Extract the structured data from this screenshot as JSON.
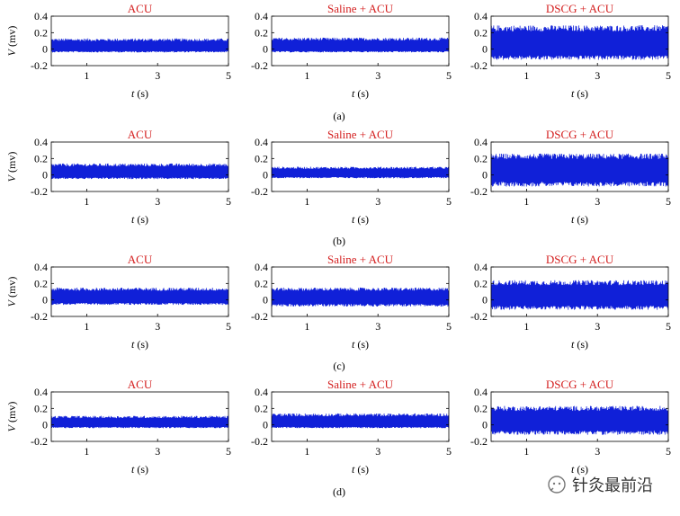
{
  "figure": {
    "row_captions": [
      "(a)",
      "(b)",
      "(c)",
      "(d)"
    ],
    "watermark": "针灸最前沿"
  },
  "colors": {
    "title": "#d42020",
    "signal": "#1020d8",
    "axis": "#000000"
  },
  "chart_data": [
    {
      "type": "line",
      "panel": "a-1",
      "title": "ACU",
      "xlabel": "t (s)",
      "ylabel": "V (mv)",
      "xlim": [
        0,
        5
      ],
      "ylim": [
        -0.2,
        0.4
      ],
      "xticks": [
        1,
        3,
        5
      ],
      "yticks": [
        -0.2,
        0,
        0.2,
        0.4
      ],
      "series": [
        {
          "envelope_max": 0.13,
          "envelope_min": -0.04,
          "baseline": 0
        }
      ]
    },
    {
      "type": "line",
      "panel": "a-2",
      "title": "Saline + ACU",
      "xlabel": "t (s)",
      "ylabel": "",
      "xlim": [
        0,
        5
      ],
      "ylim": [
        -0.2,
        0.4
      ],
      "xticks": [
        1,
        3,
        5
      ],
      "yticks": [
        -0.2,
        0,
        0.2,
        0.4
      ],
      "series": [
        {
          "envelope_max": 0.14,
          "envelope_min": -0.04,
          "baseline": 0
        }
      ]
    },
    {
      "type": "line",
      "panel": "a-3",
      "title": "DSCG + ACU",
      "xlabel": "t (s)",
      "ylabel": "",
      "xlim": [
        0,
        5
      ],
      "ylim": [
        -0.2,
        0.4
      ],
      "xticks": [
        1,
        3,
        5
      ],
      "yticks": [
        -0.2,
        0,
        0.2,
        0.4
      ],
      "series": [
        {
          "envelope_max": 0.29,
          "envelope_min": -0.13,
          "baseline": 0
        }
      ]
    },
    {
      "type": "line",
      "panel": "b-1",
      "title": "ACU",
      "xlabel": "t (s)",
      "ylabel": "V (mv)",
      "xlim": [
        0,
        5
      ],
      "ylim": [
        -0.2,
        0.4
      ],
      "xticks": [
        1,
        3,
        5
      ],
      "yticks": [
        -0.2,
        0,
        0.2,
        0.4
      ],
      "series": [
        {
          "envelope_max": 0.14,
          "envelope_min": -0.05,
          "baseline": 0
        }
      ]
    },
    {
      "type": "line",
      "panel": "b-2",
      "title": "Saline + ACU",
      "xlabel": "t (s)",
      "ylabel": "",
      "xlim": [
        0,
        5
      ],
      "ylim": [
        -0.2,
        0.4
      ],
      "xticks": [
        1,
        3,
        5
      ],
      "yticks": [
        -0.2,
        0,
        0.2,
        0.4
      ],
      "series": [
        {
          "envelope_max": 0.1,
          "envelope_min": -0.04,
          "baseline": 0
        }
      ]
    },
    {
      "type": "line",
      "panel": "b-3",
      "title": "DSCG + ACU",
      "xlabel": "t (s)",
      "ylabel": "",
      "xlim": [
        0,
        5
      ],
      "ylim": [
        -0.2,
        0.4
      ],
      "xticks": [
        1,
        3,
        5
      ],
      "yticks": [
        -0.2,
        0,
        0.2,
        0.4
      ],
      "series": [
        {
          "envelope_max": 0.26,
          "envelope_min": -0.14,
          "baseline": 0
        }
      ]
    },
    {
      "type": "line",
      "panel": "c-1",
      "title": "ACU",
      "xlabel": "t (s)",
      "ylabel": "V (mv)",
      "xlim": [
        0,
        5
      ],
      "ylim": [
        -0.2,
        0.4
      ],
      "xticks": [
        1,
        3,
        5
      ],
      "yticks": [
        -0.2,
        0,
        0.2,
        0.4
      ],
      "series": [
        {
          "envelope_max": 0.15,
          "envelope_min": -0.06,
          "baseline": 0
        }
      ]
    },
    {
      "type": "line",
      "panel": "c-2",
      "title": "Saline + ACU",
      "xlabel": "t (s)",
      "ylabel": "",
      "xlim": [
        0,
        5
      ],
      "ylim": [
        -0.2,
        0.4
      ],
      "xticks": [
        1,
        3,
        5
      ],
      "yticks": [
        -0.2,
        0,
        0.2,
        0.4
      ],
      "series": [
        {
          "envelope_max": 0.15,
          "envelope_min": -0.08,
          "baseline": 0
        }
      ]
    },
    {
      "type": "line",
      "panel": "c-3",
      "title": "DSCG + ACU",
      "xlabel": "t (s)",
      "ylabel": "",
      "xlim": [
        0,
        5
      ],
      "ylim": [
        -0.2,
        0.4
      ],
      "xticks": [
        1,
        3,
        5
      ],
      "yticks": [
        -0.2,
        0,
        0.2,
        0.4
      ],
      "series": [
        {
          "envelope_max": 0.24,
          "envelope_min": -0.12,
          "baseline": 0
        }
      ]
    },
    {
      "type": "line",
      "panel": "d-1",
      "title": "ACU",
      "xlabel": "t (s)",
      "ylabel": "V (mv)",
      "xlim": [
        0,
        5
      ],
      "ylim": [
        -0.2,
        0.4
      ],
      "xticks": [
        1,
        3,
        5
      ],
      "yticks": [
        -0.2,
        0,
        0.2,
        0.4
      ],
      "series": [
        {
          "envelope_max": 0.11,
          "envelope_min": -0.04,
          "baseline": 0
        }
      ]
    },
    {
      "type": "line",
      "panel": "d-2",
      "title": "Saline + ACU",
      "xlabel": "t (s)",
      "ylabel": "",
      "xlim": [
        0,
        5
      ],
      "ylim": [
        -0.2,
        0.4
      ],
      "xticks": [
        1,
        3,
        5
      ],
      "yticks": [
        -0.2,
        0,
        0.2,
        0.4
      ],
      "series": [
        {
          "envelope_max": 0.14,
          "envelope_min": -0.04,
          "baseline": 0
        }
      ]
    },
    {
      "type": "line",
      "panel": "d-3",
      "title": "DSCG + ACU",
      "xlabel": "t (s)",
      "ylabel": "",
      "xlim": [
        0,
        5
      ],
      "ylim": [
        -0.2,
        0.4
      ],
      "xticks": [
        1,
        3,
        5
      ],
      "yticks": [
        -0.2,
        0,
        0.2,
        0.4
      ],
      "series": [
        {
          "envelope_max": 0.23,
          "envelope_min": -0.12,
          "baseline": 0
        }
      ]
    }
  ]
}
